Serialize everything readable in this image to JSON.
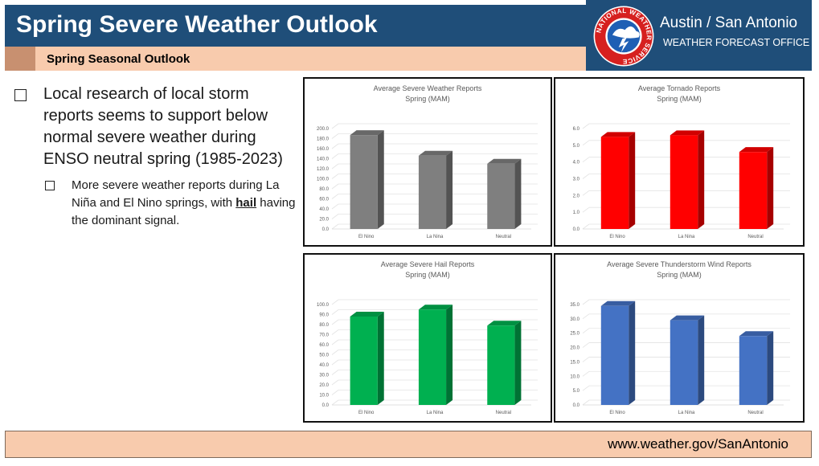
{
  "header": {
    "title": "Spring Severe Weather Outlook",
    "office_name": "Austin / San Antonio",
    "office_sub": "WEATHER FORECAST OFFICE",
    "logo_text": "NATIONAL WEATHER SERVICE"
  },
  "subheader": {
    "text": "Spring Seasonal Outlook"
  },
  "bullets": {
    "main": "Local research of local storm reports seems to support below normal severe weather during ENSO neutral spring (1985-2023)",
    "sub_before": "More severe weather reports during La Niña and El Nino springs, with ",
    "sub_bold": "hail",
    "sub_after": " having the dominant signal."
  },
  "footer": {
    "url": "www.weather.gov/SanAntonio"
  },
  "chart_data": [
    {
      "type": "bar",
      "title": "Average Severe Weather Reports",
      "subtitle": "Spring (MAM)",
      "categories": [
        "El Nino",
        "La Nina",
        "Neutral"
      ],
      "values": [
        187,
        146,
        130
      ],
      "ylim": [
        0,
        200
      ],
      "ytick_step": 20,
      "ytick_decimals": 1,
      "color": "#7f7f7f",
      "grid": true
    },
    {
      "type": "bar",
      "title": "Average Tornado Reports",
      "subtitle": "Spring (MAM)",
      "categories": [
        "El Nino",
        "La Nina",
        "Neutral"
      ],
      "values": [
        5.5,
        5.6,
        4.6
      ],
      "ylim": [
        0,
        6
      ],
      "ytick_step": 1,
      "ytick_decimals": 1,
      "color": "#ff0000",
      "grid": true
    },
    {
      "type": "bar",
      "title": "Average Severe Hail Reports",
      "subtitle": "Spring (MAM)",
      "categories": [
        "El Nino",
        "La Nina",
        "Neutral"
      ],
      "values": [
        88,
        95,
        79
      ],
      "ylim": [
        0,
        100
      ],
      "ytick_step": 10,
      "ytick_decimals": 1,
      "color": "#00b050",
      "grid": true
    },
    {
      "type": "bar",
      "title": "Average Severe Thunderstorm Wind Reports",
      "subtitle": "Spring (MAM)",
      "categories": [
        "El Nino",
        "La Nina",
        "Neutral"
      ],
      "values": [
        34.5,
        29.5,
        24
      ],
      "ylim": [
        0,
        35
      ],
      "ytick_step": 5,
      "ytick_decimals": 1,
      "color": "#4472c4",
      "grid": true
    }
  ]
}
